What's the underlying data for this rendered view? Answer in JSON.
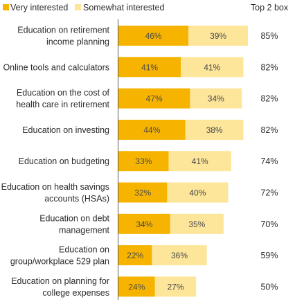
{
  "chart_data": {
    "type": "bar",
    "orientation": "horizontal",
    "stacked": true,
    "categories": [
      [
        "Education on retirement",
        "income planning"
      ],
      [
        "Online tools and calculators"
      ],
      [
        "Education on the cost of",
        "health care in retirement"
      ],
      [
        "Education on investing"
      ],
      [
        "Education on budgeting"
      ],
      [
        "Education on health savings",
        "accounts (HSAs)"
      ],
      [
        "Education on debt",
        "management"
      ],
      [
        "Education on",
        "group/workplace 529 plan"
      ],
      [
        "Education on planning for",
        "college expenses"
      ]
    ],
    "series": [
      {
        "name": "Very interested",
        "color": "#f6b400",
        "values": [
          46,
          41,
          47,
          44,
          33,
          32,
          34,
          22,
          24
        ]
      },
      {
        "name": "Somewhat interested",
        "color": "#fde59a",
        "values": [
          39,
          41,
          34,
          38,
          41,
          40,
          35,
          36,
          27
        ]
      }
    ],
    "totals_label": "Top 2 box",
    "totals": [
      "85%",
      "82%",
      "82%",
      "82%",
      "74%",
      "72%",
      "70%",
      "59%",
      "50%"
    ],
    "value_suffix": "%",
    "xlim": [
      0,
      85
    ],
    "grid": false,
    "legend_position": "top-left"
  }
}
